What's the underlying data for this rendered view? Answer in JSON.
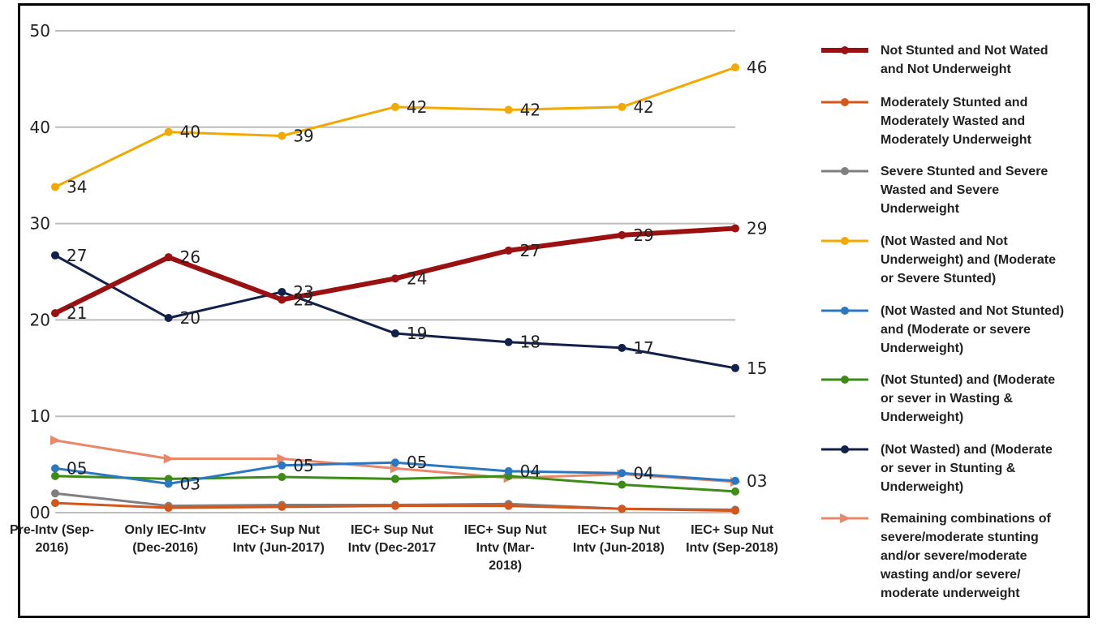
{
  "chart_data": {
    "type": "line",
    "title": "",
    "xlabel": "",
    "ylabel": "",
    "ylim": [
      0,
      50
    ],
    "yticks": [
      "00",
      "10",
      "20",
      "30",
      "40",
      "50"
    ],
    "grid": true,
    "legend_position": "right",
    "categories": [
      "Pre-Intv (Sep-2016)",
      "Only IEC-Intv (Dec-2016)",
      "IEC+ Sup Nut Intv (Jun-2017)",
      "IEC+ Sup Nut Intv (Dec-2017",
      "IEC+ Sup Nut Intv (Mar-2018)",
      "IEC+ Sup Nut Intv (Jun-2018)",
      "IEC+ Sup Nut Intv (Sep-2018)"
    ],
    "category_lines": [
      [
        "Pre-Intv (Sep-",
        "2016)"
      ],
      [
        "Only IEC-Intv",
        "(Dec-2016)"
      ],
      [
        "IEC+ Sup Nut",
        "Intv (Jun-2017)"
      ],
      [
        "IEC+ Sup Nut",
        "Intv (Dec-2017"
      ],
      [
        "IEC+ Sup Nut",
        "Intv (Mar-",
        "2018)"
      ],
      [
        "IEC+ Sup Nut",
        "Intv (Jun-2018)"
      ],
      [
        "IEC+ Sup Nut",
        "Intv (Sep-2018)"
      ]
    ],
    "series": [
      {
        "name": "Not Stunted and Not Wated and Not Underweight",
        "legend_lines": [
          "Not Stunted and Not Wated",
          "and Not Underweight"
        ],
        "color": "#9b1111",
        "width": 6,
        "marker": "circle",
        "values": [
          20.7,
          26.5,
          22.1,
          24.3,
          27.2,
          28.8,
          29.5
        ],
        "labels": [
          "21",
          "26",
          "22",
          "24",
          "27",
          "29",
          "29"
        ]
      },
      {
        "name": "Moderately Stunted and Moderately Wasted and Moderately Underweight",
        "legend_lines": [
          "Moderately Stunted and",
          "Moderately Wasted and",
          "Moderately Underweight"
        ],
        "color": "#d4561b",
        "width": 3,
        "marker": "circle",
        "values": [
          1.0,
          0.5,
          0.6,
          0.7,
          0.7,
          0.4,
          0.2
        ],
        "labels": []
      },
      {
        "name": "Severe Stunted and Severe Wasted and Severe Underweight",
        "legend_lines": [
          "Severe Stunted and Severe",
          "Wasted and Severe",
          "Underweight"
        ],
        "color": "#7f7f7f",
        "width": 3,
        "marker": "circle",
        "values": [
          2.0,
          0.7,
          0.8,
          0.8,
          0.9,
          0.4,
          0.3
        ],
        "labels": []
      },
      {
        "name": "(Not Wasted and Not Underweight) and (Moderate or Severe Stunted)",
        "legend_lines": [
          "(Not Wasted and Not",
          "Underweight) and (Moderate",
          "or Severe Stunted)"
        ],
        "color": "#f2a900",
        "width": 3,
        "marker": "circle",
        "values": [
          33.8,
          39.5,
          39.1,
          42.1,
          41.8,
          42.1,
          46.2
        ],
        "labels": [
          "34",
          "40",
          "39",
          "42",
          "42",
          "42",
          "46"
        ]
      },
      {
        "name": "(Not Wasted and Not Stunted) and (Moderate or severe Underweight)",
        "legend_lines": [
          "(Not Wasted and Not Stunted)",
          "and (Moderate or severe",
          "Underweight)"
        ],
        "color": "#2b78c2",
        "width": 3,
        "marker": "circle",
        "values": [
          4.6,
          3.0,
          4.9,
          5.2,
          4.3,
          4.1,
          3.3
        ],
        "labels": [
          "05",
          "03",
          "05",
          "05",
          "04",
          "04",
          "03"
        ]
      },
      {
        "name": "(Not Stunted) and (Moderate or sever in Wasting & Underweight)",
        "legend_lines": [
          "(Not Stunted) and (Moderate",
          "or sever in Wasting &",
          "Underweight)"
        ],
        "color": "#3d8c17",
        "width": 3,
        "marker": "circle",
        "values": [
          3.8,
          3.5,
          3.7,
          3.5,
          3.8,
          2.9,
          2.2
        ],
        "labels": []
      },
      {
        "name": "(Not Wasted) and (Moderate or sever in Stunting & Underweight)",
        "legend_lines": [
          "(Not Wasted) and (Moderate",
          "or sever in Stunting &",
          "Underweight)"
        ],
        "color": "#13204a",
        "width": 3,
        "marker": "circle",
        "values": [
          26.7,
          20.2,
          22.9,
          18.6,
          17.7,
          17.1,
          15.0
        ],
        "labels": [
          "27",
          "20",
          "23",
          "19",
          "18",
          "17",
          "15"
        ]
      },
      {
        "name": "Remaining combinations of severe/moderate stunting and/or severe/moderate wasting and/or severe/ moderate underweight",
        "legend_lines": [
          "Remaining combinations of",
          "severe/moderate stunting",
          "and/or severe/moderate",
          "wasting and/or severe/",
          "moderate underweight"
        ],
        "color": "#e8876a",
        "width": 3,
        "marker": "triangle",
        "values": [
          7.5,
          5.6,
          5.6,
          4.6,
          3.6,
          4.0,
          3.2
        ],
        "labels": []
      }
    ]
  }
}
